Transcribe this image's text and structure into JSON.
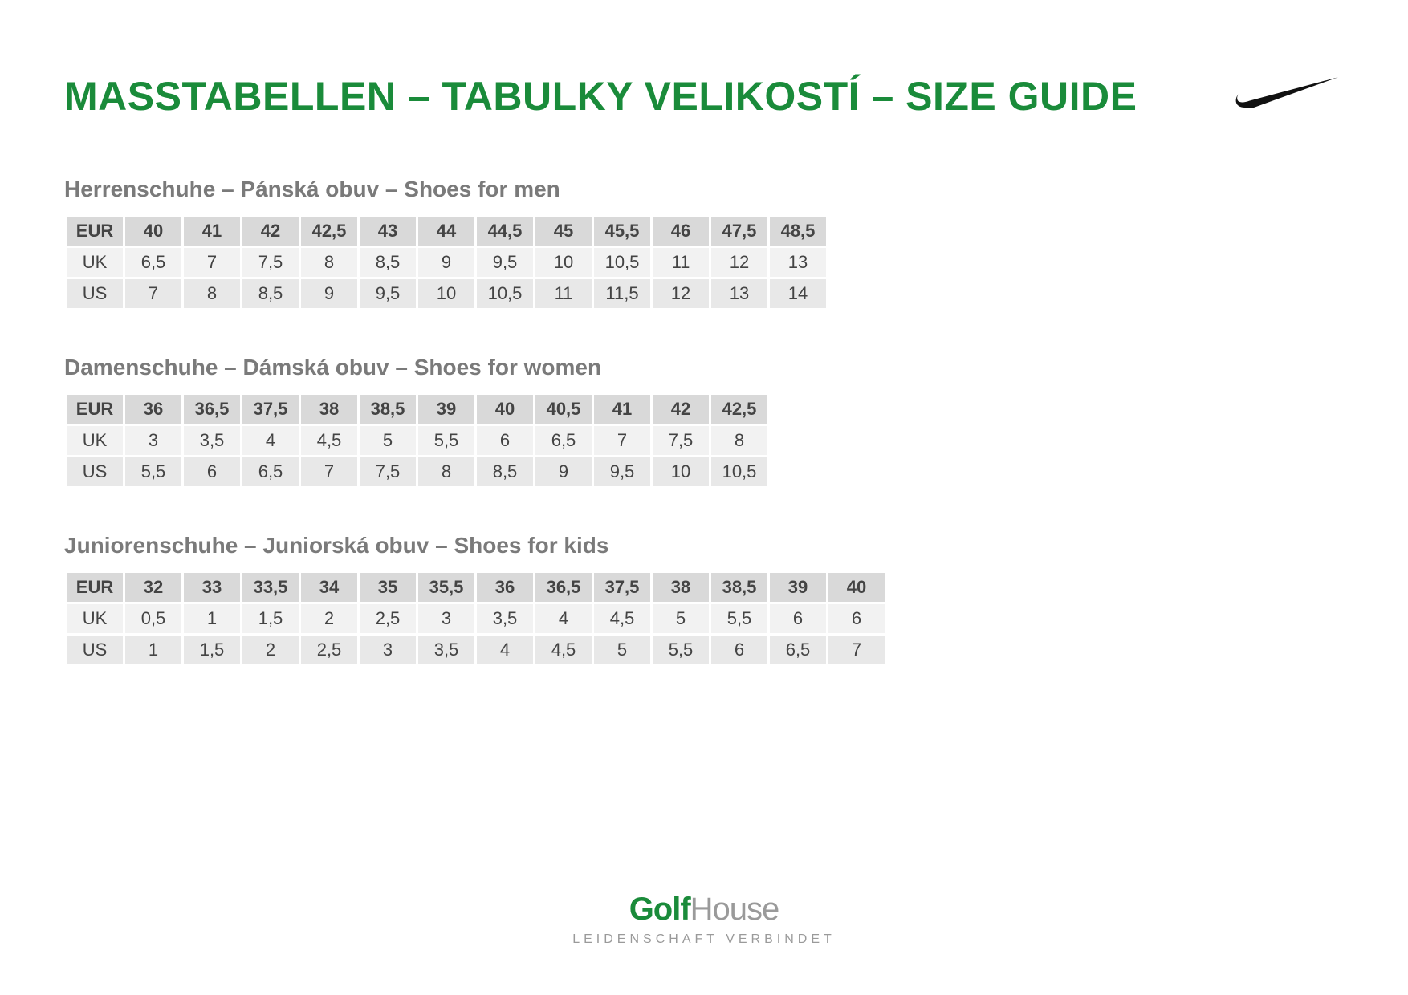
{
  "title": "MASSTABELLEN – TABULKY VELIKOSTÍ – SIZE GUIDE",
  "title_color": "#1a8b3a",
  "swoosh_color": "#111111",
  "section_title_color": "#7a7a7a",
  "table_header_bg": "#d9d9d9",
  "table_row_odd_bg": "#f2f2f2",
  "table_row_even_bg": "#e8e8e8",
  "cell_text_color": "#444444",
  "sections": [
    {
      "title": "Herrenschuhe – Pánská obuv – Shoes for men",
      "rows": [
        {
          "label": "EUR",
          "header": true,
          "cells": [
            "40",
            "41",
            "42",
            "42,5",
            "43",
            "44",
            "44,5",
            "45",
            "45,5",
            "46",
            "47,5",
            "48,5"
          ]
        },
        {
          "label": "UK",
          "header": false,
          "cells": [
            "6,5",
            "7",
            "7,5",
            "8",
            "8,5",
            "9",
            "9,5",
            "10",
            "10,5",
            "11",
            "12",
            "13"
          ]
        },
        {
          "label": "US",
          "header": false,
          "cells": [
            "7",
            "8",
            "8,5",
            "9",
            "9,5",
            "10",
            "10,5",
            "11",
            "11,5",
            "12",
            "13",
            "14"
          ]
        }
      ]
    },
    {
      "title": "Damenschuhe – Dámská obuv – Shoes for women",
      "rows": [
        {
          "label": "EUR",
          "header": true,
          "cells": [
            "36",
            "36,5",
            "37,5",
            "38",
            "38,5",
            "39",
            "40",
            "40,5",
            "41",
            "42",
            "42,5"
          ]
        },
        {
          "label": "UK",
          "header": false,
          "cells": [
            "3",
            "3,5",
            "4",
            "4,5",
            "5",
            "5,5",
            "6",
            "6,5",
            "7",
            "7,5",
            "8"
          ]
        },
        {
          "label": "US",
          "header": false,
          "cells": [
            "5,5",
            "6",
            "6,5",
            "7",
            "7,5",
            "8",
            "8,5",
            "9",
            "9,5",
            "10",
            "10,5"
          ]
        }
      ]
    },
    {
      "title": "Juniorenschuhe – Juniorská obuv – Shoes for kids",
      "rows": [
        {
          "label": "EUR",
          "header": true,
          "cells": [
            "32",
            "33",
            "33,5",
            "34",
            "35",
            "35,5",
            "36",
            "36,5",
            "37,5",
            "38",
            "38,5",
            "39",
            "40"
          ]
        },
        {
          "label": "UK",
          "header": false,
          "cells": [
            "0,5",
            "1",
            "1,5",
            "2",
            "2,5",
            "3",
            "3,5",
            "4",
            "4,5",
            "5",
            "5,5",
            "6",
            "6"
          ]
        },
        {
          "label": "US",
          "header": false,
          "cells": [
            "1",
            "1,5",
            "2",
            "2,5",
            "3",
            "3,5",
            "4",
            "4,5",
            "5",
            "5,5",
            "6",
            "6,5",
            "7"
          ]
        }
      ]
    }
  ],
  "footer": {
    "logo_bold": "Golf",
    "logo_light": "House",
    "logo_bold_color": "#1a8b3a",
    "logo_light_color": "#9a9a9a",
    "tagline": "LEIDENSCHAFT VERBINDET",
    "tagline_color": "#9a9a9a"
  }
}
